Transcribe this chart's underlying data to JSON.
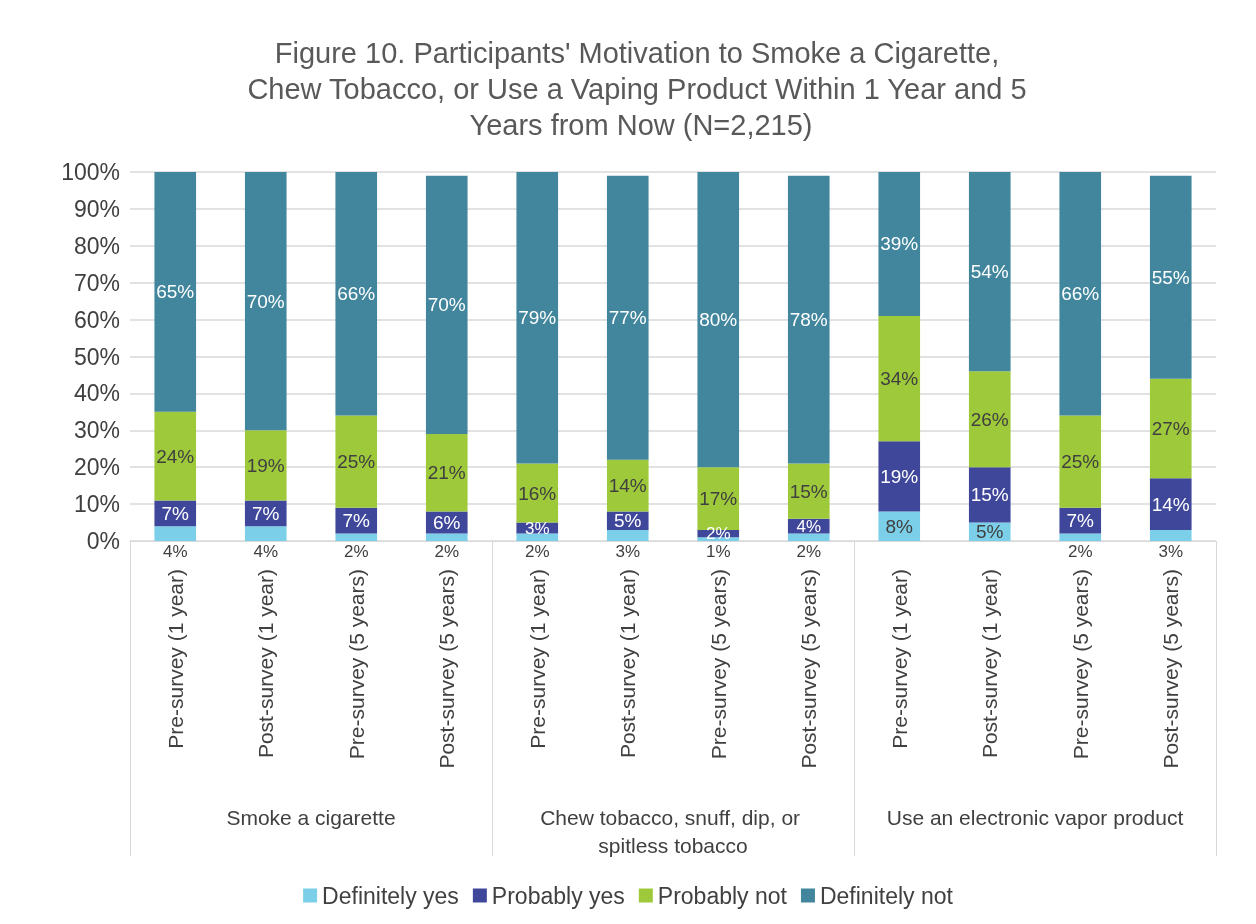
{
  "chart_data": {
    "type": "bar",
    "stacked": true,
    "title": "Figure 10. Participants' Motivation to Smoke a Cigarette, Chew Tobacco, or Use a Vaping Product Within 1 Year and 5 Years from Now (N=2,215)",
    "categories": [
      "Pre-survey (1 year)",
      "Post-survey (1 year)",
      "Pre-survey (5 years)",
      "Post-survey (5 years)",
      "Pre-survey (1 year)",
      "Post-survey (1 year)",
      "Pre-survey (5 years)",
      "Post-survey (5 years)",
      "Pre-survey (1 year)",
      "Post-survey (1 year)",
      "Pre-survey (5 years)",
      "Post-survey (5 years)"
    ],
    "annotations": [
      "Smoke a cigarette",
      "Chew tobacco, snuff, dip, or spitless tobacco",
      "Use an electronic vapor product"
    ],
    "series": [
      {
        "name": "Definitely yes",
        "color": "#7ccfe9",
        "values": [
          4,
          4,
          2,
          2,
          2,
          3,
          1,
          2,
          8,
          5,
          2,
          3
        ],
        "value_labels": [
          "4%",
          "4%",
          "2%",
          "2%",
          "2%",
          "3%",
          "1%",
          "2%",
          "8%",
          "5%",
          "2%",
          "3%"
        ]
      },
      {
        "name": "Probably yes",
        "color": "#3f479b",
        "values": [
          7,
          7,
          7,
          6,
          3,
          5,
          2,
          4,
          19,
          15,
          7,
          14
        ],
        "value_labels": [
          "7%",
          "7%",
          "7%",
          "6%",
          "3%",
          "5%",
          "2%",
          "4%",
          "19%",
          "15%",
          "7%",
          "14%"
        ]
      },
      {
        "name": "Probably not",
        "color": "#9ec93a",
        "values": [
          24,
          19,
          25,
          21,
          16,
          14,
          17,
          15,
          34,
          26,
          25,
          27
        ],
        "value_labels": [
          "24%",
          "19%",
          "25%",
          "21%",
          "16%",
          "14%",
          "17%",
          "15%",
          "34%",
          "26%",
          "25%",
          "27%"
        ]
      },
      {
        "name": "Definitely not",
        "color": "#41869d",
        "values": [
          65,
          70,
          66,
          70,
          79,
          77,
          80,
          78,
          39,
          54,
          66,
          55
        ],
        "value_labels": [
          "65%",
          "70%",
          "66%",
          "70%",
          "79%",
          "77%",
          "80%",
          "78%",
          "39%",
          "54%",
          "66%",
          "55%"
        ]
      }
    ],
    "ylim": [
      0,
      100
    ],
    "yticks": [
      {
        "value": 0,
        "label": "0%"
      },
      {
        "value": 10,
        "label": "10%"
      },
      {
        "value": 20,
        "label": "20%"
      },
      {
        "value": 30,
        "label": "30%"
      },
      {
        "value": 40,
        "label": "40%"
      },
      {
        "value": 50,
        "label": "50%"
      },
      {
        "value": 60,
        "label": "60%"
      },
      {
        "value": 70,
        "label": "70%"
      },
      {
        "value": 80,
        "label": "80%"
      },
      {
        "value": 90,
        "label": "90%"
      },
      {
        "value": 100,
        "label": "100%"
      }
    ],
    "grid": "y",
    "legend": "bottom"
  }
}
